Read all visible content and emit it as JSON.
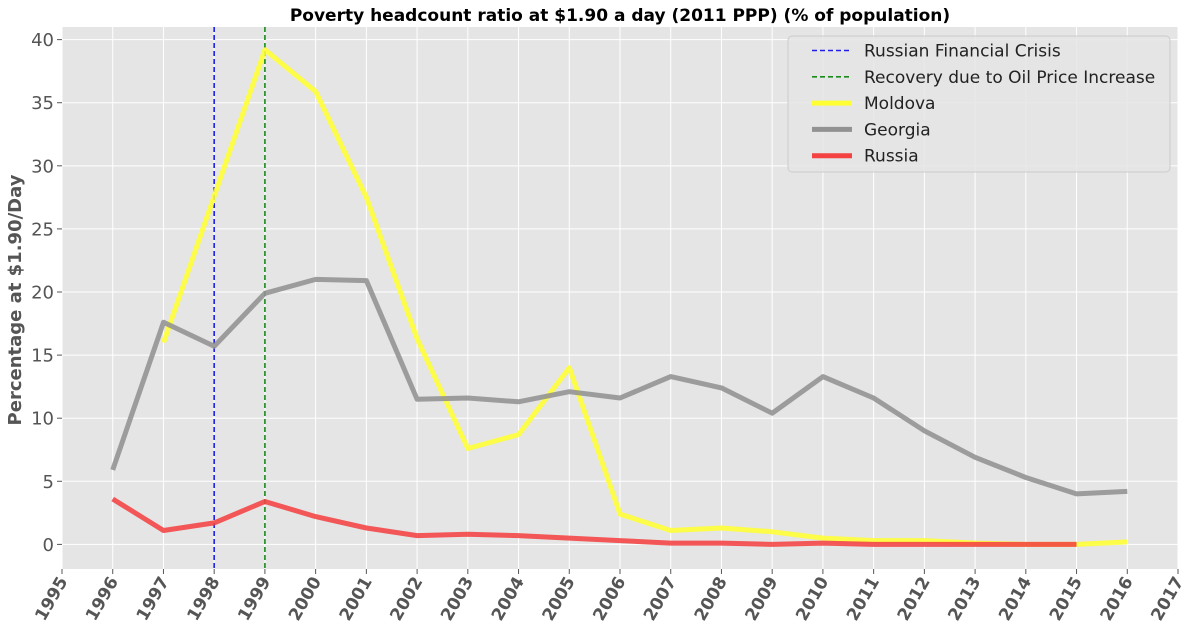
{
  "chart_data": {
    "type": "line",
    "title": "Poverty headcount ratio at $1.90 a day (2011 PPP) (% of population)",
    "xlabel": "",
    "ylabel": "Percentage at $1.90/Day",
    "xlim": [
      1995,
      2017
    ],
    "ylim": [
      -1.95,
      41
    ],
    "x_ticks": [
      "1995",
      "1996",
      "1997",
      "1998",
      "1999",
      "2000",
      "2001",
      "2002",
      "2003",
      "2004",
      "2005",
      "2006",
      "2007",
      "2008",
      "2009",
      "2010",
      "2011",
      "2012",
      "2013",
      "2014",
      "2015",
      "2016",
      "2017"
    ],
    "y_ticks": [
      0,
      5,
      10,
      15,
      20,
      25,
      30,
      35,
      40
    ],
    "grid": true,
    "legend_position": "top-right",
    "series": [
      {
        "name": "Moldova",
        "color": "#ffff33",
        "x": [
          1997,
          1998,
          1999,
          2000,
          2001,
          2002,
          2003,
          2004,
          2005,
          2006,
          2007,
          2008,
          2009,
          2010,
          2011,
          2012,
          2013,
          2014,
          2015,
          2016
        ],
        "y": [
          16.0,
          27.6,
          39.2,
          35.9,
          27.5,
          16.3,
          7.6,
          8.7,
          14.0,
          2.4,
          1.1,
          1.3,
          1.0,
          0.5,
          0.3,
          0.3,
          0.1,
          0.0,
          0.0,
          0.2
        ]
      },
      {
        "name": "Georgia",
        "color": "#929292",
        "x": [
          1996,
          1997,
          1998,
          1999,
          2000,
          2001,
          2002,
          2003,
          2004,
          2005,
          2006,
          2007,
          2008,
          2009,
          2010,
          2011,
          2012,
          2013,
          2014,
          2015,
          2016
        ],
        "y": [
          5.9,
          17.6,
          15.7,
          19.9,
          21.0,
          20.9,
          11.5,
          11.6,
          11.3,
          12.1,
          11.6,
          13.3,
          12.4,
          10.4,
          13.3,
          11.6,
          9.0,
          6.9,
          5.3,
          4.0,
          4.2
        ]
      },
      {
        "name": "Russia",
        "color": "#f44242",
        "x": [
          1996,
          1997,
          1998,
          1999,
          2000,
          2001,
          2002,
          2003,
          2004,
          2005,
          2006,
          2007,
          2008,
          2009,
          2010,
          2011,
          2012,
          2013,
          2014,
          2015
        ],
        "y": [
          3.6,
          1.1,
          1.7,
          3.4,
          2.2,
          1.3,
          0.7,
          0.8,
          0.7,
          0.5,
          0.3,
          0.1,
          0.1,
          0.0,
          0.1,
          0.0,
          0.0,
          0.0,
          0.0,
          0.0
        ]
      }
    ],
    "vlines": [
      {
        "name": "Russian Financial Crisis",
        "x": 1998,
        "color": "#1f1fe8"
      },
      {
        "name": "Recovery due to Oil Price Increase",
        "x": 1999,
        "color": "#1a8a1a"
      }
    ],
    "legend_order": [
      "Russian Financial Crisis",
      "Recovery due to Oil Price Increase",
      "Moldova",
      "Georgia",
      "Russia"
    ]
  },
  "colors": {
    "plot_background": "#e5e5e5",
    "grid": "#ffffff",
    "tick_text": "#555555"
  }
}
